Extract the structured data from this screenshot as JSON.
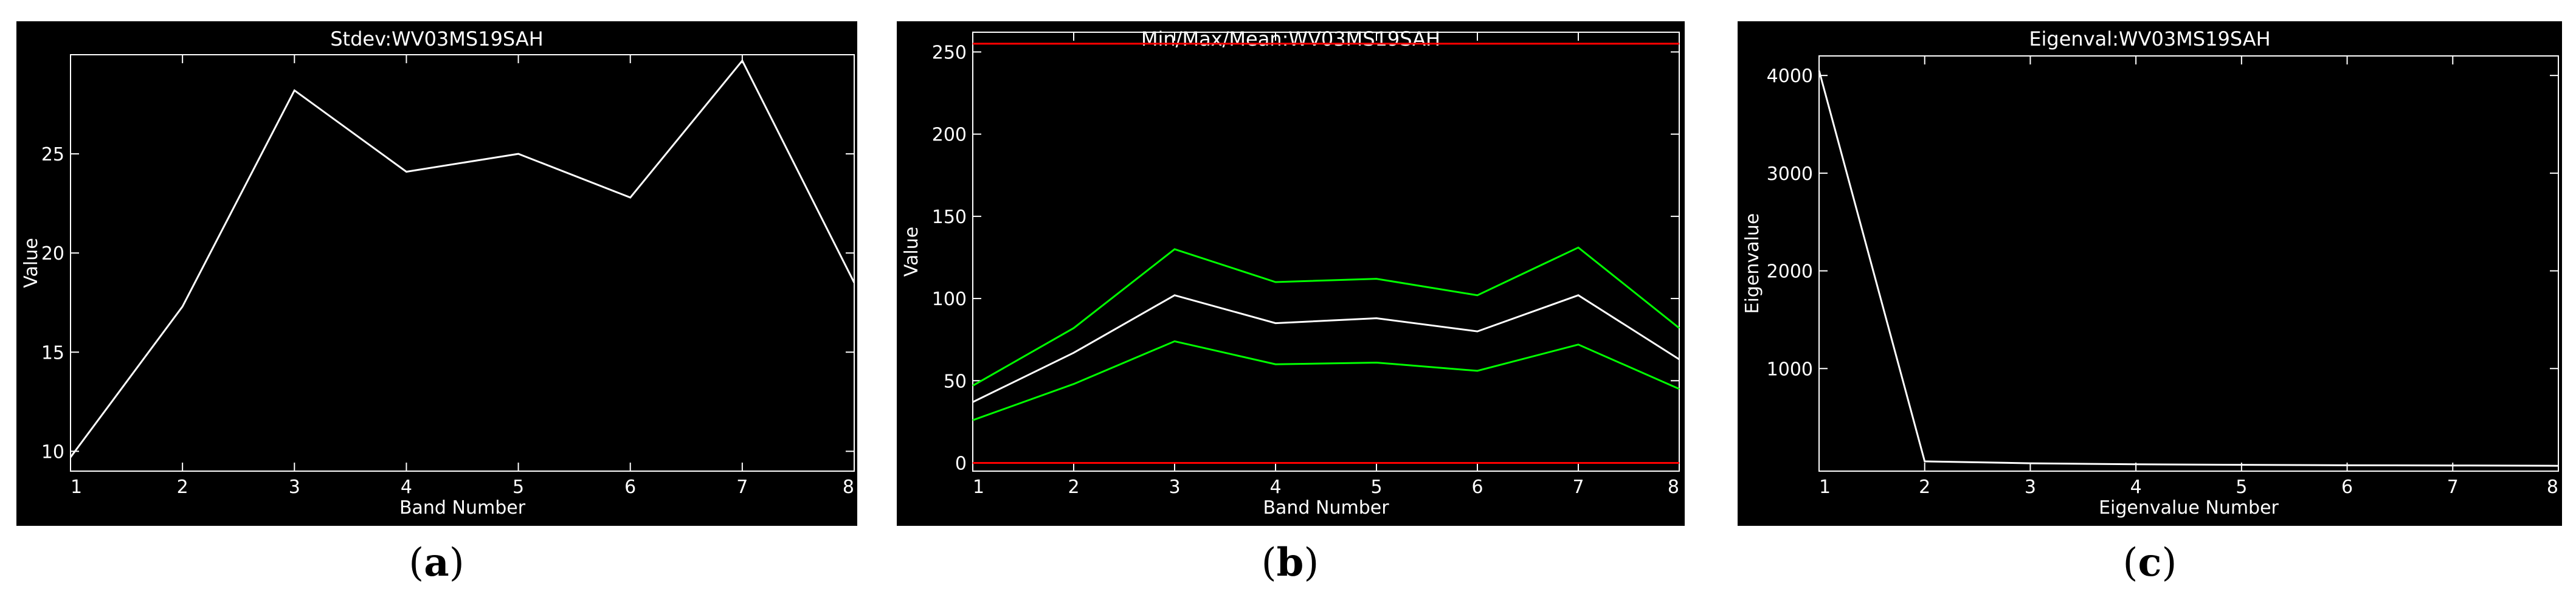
{
  "captions": [
    "a",
    "b",
    "c"
  ],
  "colors": {
    "background": "#000000",
    "axis": "#ffffff",
    "series_white": "#ffffff",
    "series_green": "#00ff00",
    "series_red": "#ff0000"
  },
  "chart_data": [
    {
      "type": "line",
      "title": "Stdev:WV03MS19SAH",
      "xlabel": "Band Number",
      "ylabel": "Value",
      "xlim": [
        1,
        8
      ],
      "ylim": [
        9,
        30
      ],
      "xticks": [
        1,
        2,
        3,
        4,
        5,
        6,
        7,
        8
      ],
      "yticks": [
        10,
        15,
        20,
        25
      ],
      "x": [
        1,
        2,
        3,
        4,
        5,
        6,
        7,
        8
      ],
      "series": [
        {
          "color": "#ffffff",
          "values": [
            9.7,
            17.3,
            28.2,
            24.1,
            25.0,
            22.8,
            29.7,
            18.5
          ]
        }
      ]
    },
    {
      "type": "line",
      "title": "Min/Max/Mean:WV03MS19SAH",
      "xlabel": "Band Number",
      "ylabel": "Value",
      "xlim": [
        1,
        8
      ],
      "ylim": [
        -5,
        262
      ],
      "xticks": [
        1,
        2,
        3,
        4,
        5,
        6,
        7,
        8
      ],
      "yticks": [
        0,
        50,
        100,
        150,
        200,
        250
      ],
      "x": [
        1,
        2,
        3,
        4,
        5,
        6,
        7,
        8
      ],
      "series": [
        {
          "color": "#ff0000",
          "values": [
            255,
            255,
            255,
            255,
            255,
            255,
            255,
            255
          ]
        },
        {
          "color": "#ff0000",
          "values": [
            0,
            0,
            0,
            0,
            0,
            0,
            0,
            0
          ]
        },
        {
          "color": "#00ff00",
          "values": [
            47,
            82,
            130,
            110,
            112,
            102,
            131,
            82
          ]
        },
        {
          "color": "#ffffff",
          "values": [
            37,
            67,
            102,
            85,
            88,
            80,
            102,
            63
          ]
        },
        {
          "color": "#00ff00",
          "values": [
            26,
            48,
            74,
            60,
            61,
            56,
            72,
            45
          ]
        }
      ]
    },
    {
      "type": "line",
      "title": "Eigenval:WV03MS19SAH",
      "xlabel": "Eigenvalue Number",
      "ylabel": "Eigenvalue",
      "xlim": [
        1,
        8
      ],
      "ylim": [
        -50,
        4200
      ],
      "xticks": [
        1,
        2,
        3,
        4,
        5,
        6,
        7,
        8
      ],
      "yticks": [
        1000,
        2000,
        3000,
        4000
      ],
      "x": [
        1,
        2,
        3,
        4,
        5,
        6,
        7,
        8
      ],
      "series": [
        {
          "color": "#ffffff",
          "values": [
            4050,
            50,
            30,
            20,
            15,
            10,
            8,
            5
          ]
        }
      ]
    }
  ]
}
